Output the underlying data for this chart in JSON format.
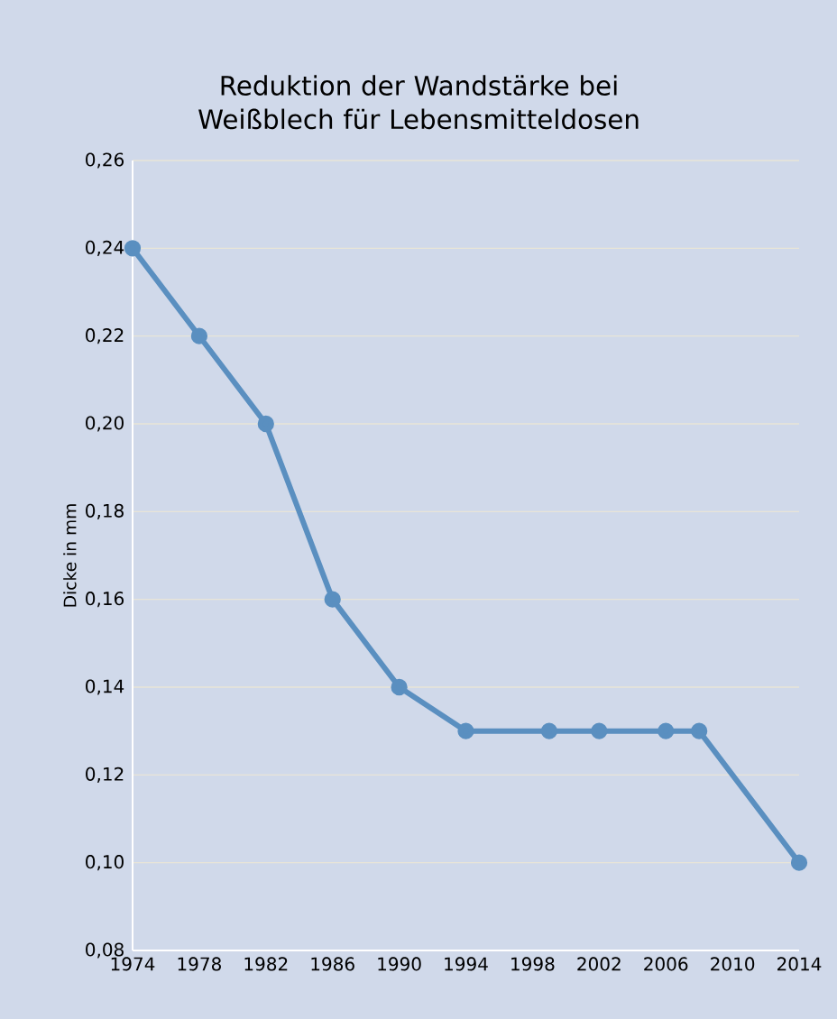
{
  "chart_data": {
    "type": "line",
    "title": "Reduktion der Wandstärke bei Weißblech für Lebensmitteldosen",
    "ylabel": "Dicke in mm",
    "x": [
      1974,
      1978,
      1982,
      1986,
      1990,
      1994,
      1999,
      2002,
      2006,
      2008,
      2014
    ],
    "series": [
      {
        "color": "#5a8fc0",
        "values": [
          0.24,
          0.22,
          0.2,
          0.16,
          0.14,
          0.13,
          0.13,
          0.13,
          0.13,
          0.13,
          0.1
        ]
      }
    ],
    "xlim": [
      1974,
      2014
    ],
    "xticks": [
      1974,
      1978,
      1982,
      1986,
      1990,
      1994,
      1998,
      2002,
      2006,
      2010,
      2014
    ],
    "ylim": [
      0.08,
      0.26
    ],
    "yticks": [
      {
        "value": 0.08,
        "label": "0,08"
      },
      {
        "value": 0.1,
        "label": "0,10"
      },
      {
        "value": 0.12,
        "label": "0,12"
      },
      {
        "value": 0.14,
        "label": "0,14"
      },
      {
        "value": 0.16,
        "label": "0,16"
      },
      {
        "value": 0.18,
        "label": "0,18"
      },
      {
        "value": 0.2,
        "label": "0,20"
      },
      {
        "value": 0.22,
        "label": "0,22"
      },
      {
        "value": 0.24,
        "label": "0,24"
      },
      {
        "value": 0.26,
        "label": "0,26"
      }
    ],
    "grid": "y",
    "marker": "circle",
    "line_style": "solid"
  }
}
